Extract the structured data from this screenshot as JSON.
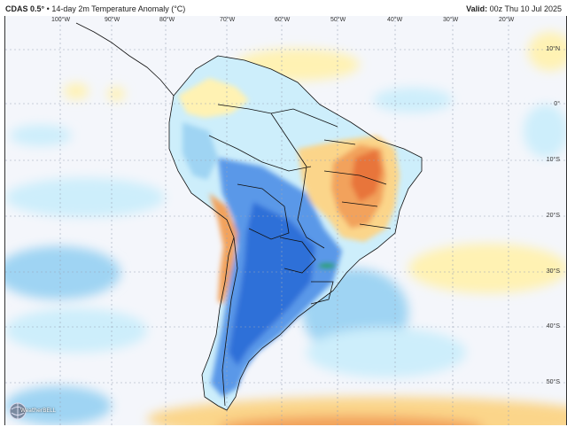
{
  "header": {
    "model": "CDAS 0.5°",
    "separator": "•",
    "product": "14-day 2m Temperature Anomaly (°C)",
    "valid_label": "Valid:",
    "valid_time": "00z Thu 10 Jul 2025"
  },
  "longitude_labels": [
    "100°W",
    "90°W",
    "80°W",
    "70°W",
    "60°W",
    "50°W",
    "40°W",
    "30°W",
    "20°W"
  ],
  "latitude_labels": [
    "10°N",
    "0°",
    "10°S",
    "20°S",
    "30°S",
    "40°S",
    "50°S"
  ],
  "logo": {
    "text": "WeatherBELL"
  },
  "colors": {
    "ocean_background": "#f4f6fb",
    "strong_cold": "#2f6fd8",
    "cold": "#5a98e8",
    "cool": "#9fd4f3",
    "slight_cool": "#cdeefb",
    "slight_warm": "#fff2b3",
    "warm": "#fbd58a",
    "hot": "#f2a25c",
    "very_hot": "#e8743a",
    "extreme_patch": "#1aa04a",
    "grid": "#9aa4b8",
    "border": "#111111"
  }
}
